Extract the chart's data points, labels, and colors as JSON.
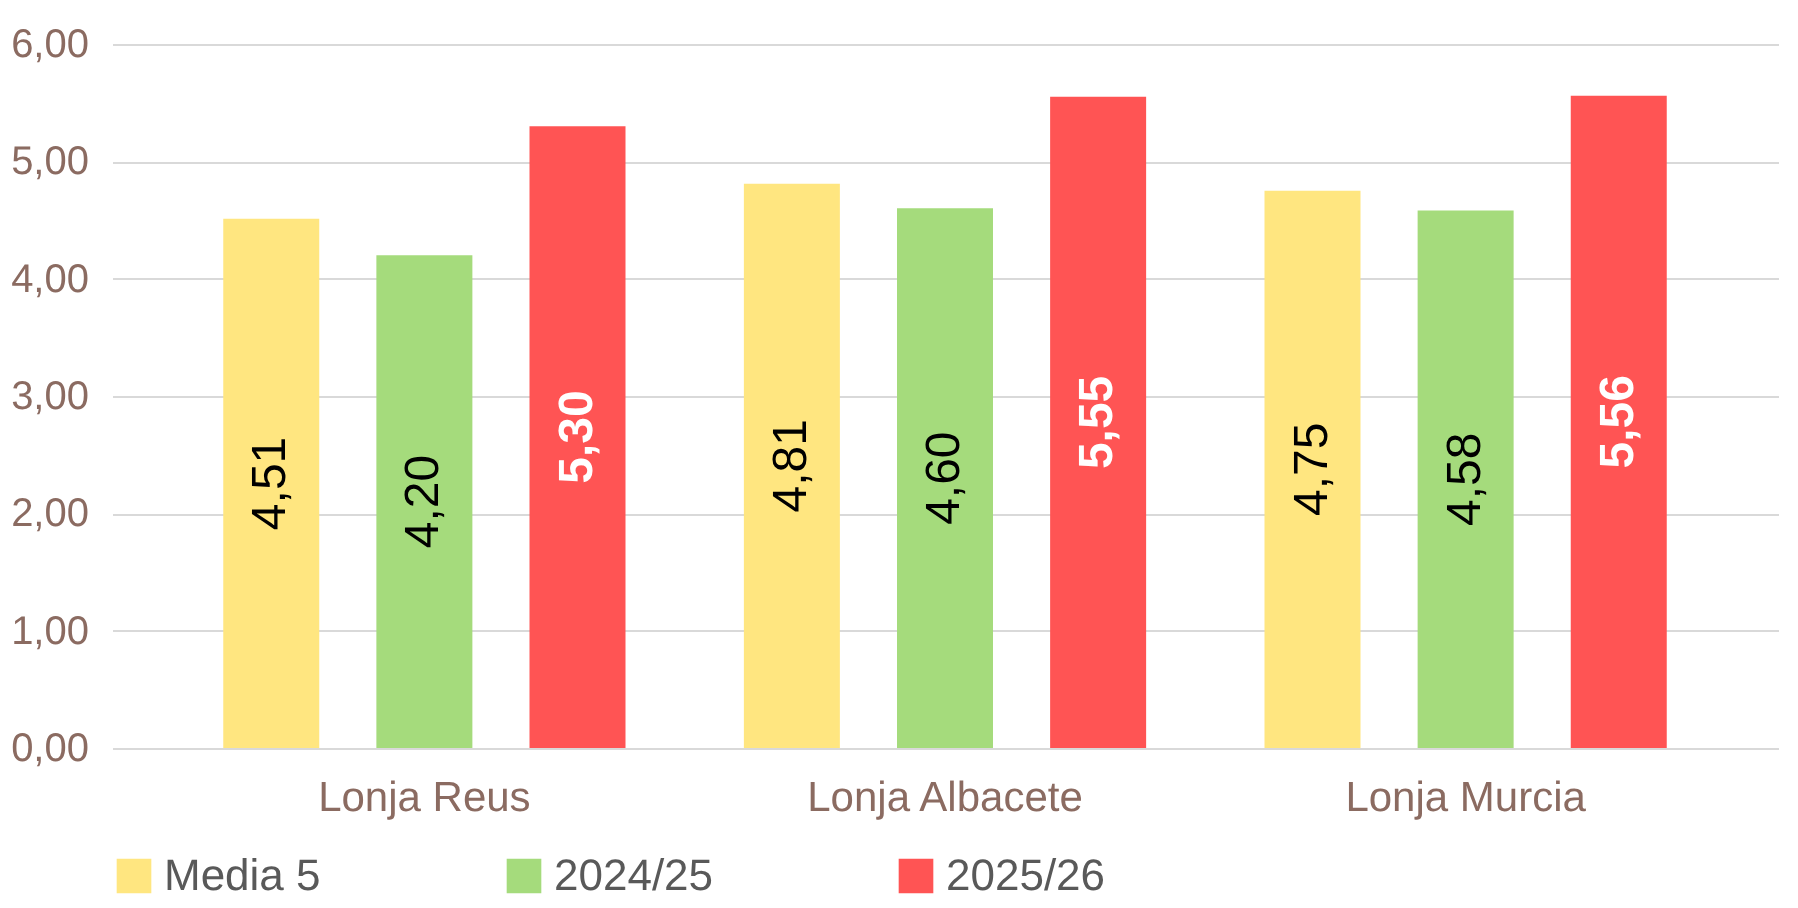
{
  "chart_data": {
    "type": "bar",
    "categories": [
      "Lonja Reus",
      "Lonja Albacete",
      "Lonja Murcia"
    ],
    "series": [
      {
        "name": "Media 5",
        "color": "#ffe680",
        "values": [
          4.51,
          4.81,
          4.75
        ],
        "value_labels": [
          "4,51",
          "4,81",
          "4,75"
        ]
      },
      {
        "name": "2024/25",
        "color": "#a5db7c",
        "values": [
          4.2,
          4.6,
          4.58
        ],
        "value_labels": [
          "4,20",
          "4,60",
          "4,58"
        ]
      },
      {
        "name": "2025/26",
        "color": "#ff5454",
        "values": [
          5.3,
          5.55,
          5.56
        ],
        "value_labels": [
          "5,30",
          "5,55",
          "5,56"
        ]
      }
    ],
    "ylim": [
      0,
      6
    ],
    "yticks": [
      {
        "value": 0,
        "label": "0,00"
      },
      {
        "value": 1,
        "label": "1,00"
      },
      {
        "value": 2,
        "label": "2,00"
      },
      {
        "value": 3,
        "label": "3,00"
      },
      {
        "value": 4,
        "label": "4,00"
      },
      {
        "value": 5,
        "label": "5,00"
      },
      {
        "value": 6,
        "label": "6,00"
      }
    ],
    "grid": "y",
    "legend": "bottom"
  }
}
